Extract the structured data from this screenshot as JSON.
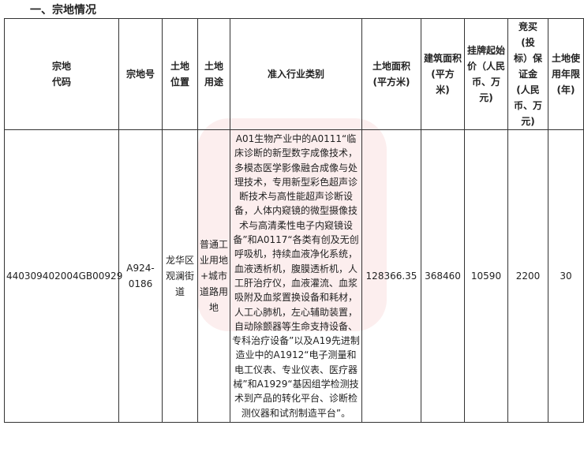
{
  "section_title": "一、宗地情况",
  "headers": [
    "宗地\n代码",
    "宗地号",
    "土地\n位置",
    "土地\n用途",
    "准入行业类别",
    "土地面积\n(平方米)",
    "建筑面积\n(平方\n米)",
    "挂牌起始\n价（人民\n币、万\n元)",
    "竞买\n(投\n标）保\n证金\n(人民\n币、万\n元)",
    "土地使\n用年限\n(年)"
  ],
  "row": {
    "code": "440309402004GB00929",
    "parcel_no": "A924-\n0186",
    "location": "龙华区\n观澜街\n道",
    "use": "普通工\n业用地\n+城市\n道路用\n地",
    "industry": "A01生物产业中的A0111“临床诊断的新型数字成像技术，多模态医学影像融合成像与处理技术，专用新型彩色超声诊断技术与高性能超声诊断设备，人体内窥镜的微型摄像技术与高清柔性电子内窥镜设备”和A0117“各类有创及无创呼吸机，持续血液净化系统，血液透析机，腹膜透析机，人工肝治疗仪，血液灌流、血浆吸附及血浆置换设备和耗材，人工心肺机，左心辅助装置，自动除颤器等生命支持设备、专科治疗设备”以及A19先进制造业中的A1912“电子测量和电工仪表、专业仪表、医疗器械”和A1929“基因组学检测技术到产品的转化平台、诊断检测仪器和试剂制造平台”。",
    "land_area": "128366.35",
    "building_area": "368460",
    "start_price": "10590",
    "deposit": "2200",
    "years": "30"
  }
}
